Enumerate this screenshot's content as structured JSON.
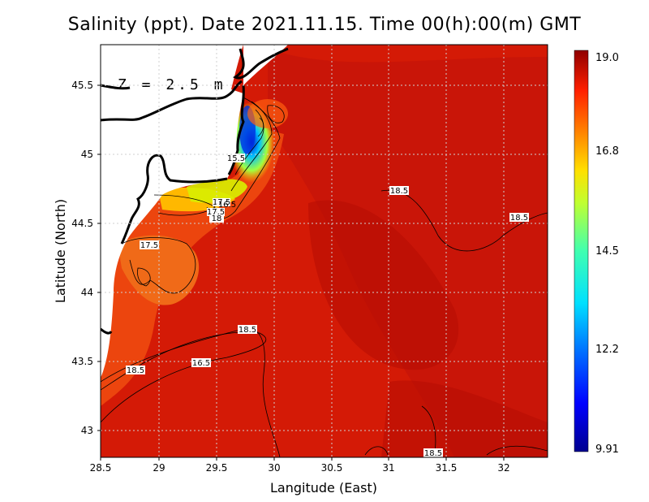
{
  "title": "Salinity (ppt). Date 2021.11.15. Time 00(h):00(m) GMT",
  "depth_label": "Z = 2.5 m",
  "axes": {
    "xlabel": "Langitude (East)",
    "ylabel": "Latitude (North)",
    "xlim": [
      28.5,
      32.4
    ],
    "ylim": [
      42.82,
      45.82
    ],
    "xticks": [
      "28.5",
      "29",
      "29.5",
      "30",
      "30.5",
      "31",
      "31.5",
      "32"
    ],
    "yticks": [
      "43",
      "43.5",
      "44",
      "44.5",
      "45",
      "45.5"
    ],
    "grid": "dotted"
  },
  "colorbar": {
    "min": 9.91,
    "max": 19.0,
    "ticks": [
      "19.0",
      "16.8",
      "14.5",
      "12.2",
      "9.91"
    ],
    "colormap": "jet"
  },
  "colors": {
    "sea_dominant": "#d41a06",
    "sea_deep": "#b80d04",
    "land": "#ffffff",
    "coastline": "#000000",
    "contour": "#000000"
  },
  "contour_labels": [
    {
      "text": "15.5"
    },
    {
      "text": "18.5"
    },
    {
      "text": "18.5"
    },
    {
      "text": "17.5"
    },
    {
      "text": "17.5"
    },
    {
      "text": "18"
    },
    {
      "text": "17.5"
    },
    {
      "text": "16.5"
    },
    {
      "text": "18.5"
    },
    {
      "text": "16.5"
    },
    {
      "text": "18.5"
    },
    {
      "text": "18.5"
    }
  ]
}
